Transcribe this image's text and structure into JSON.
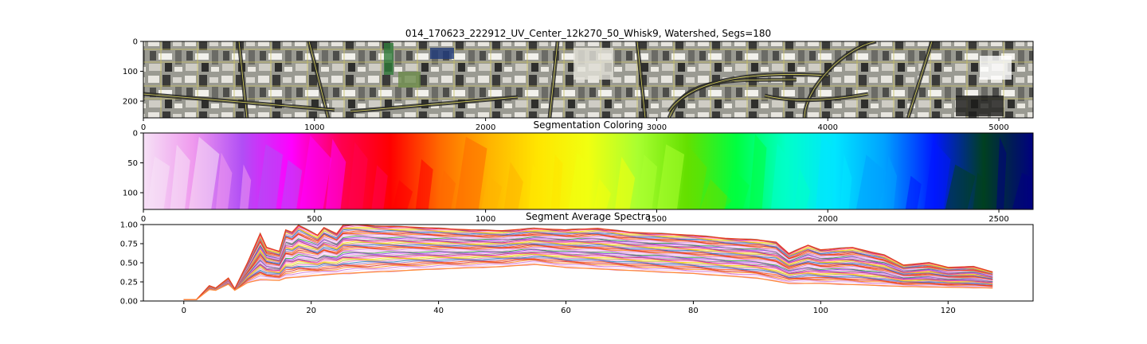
{
  "chart_data": [
    {
      "type": "image",
      "title": "014_170623_222912_UV_Center_12k270_50_Whisk9, Watershed, Segs=180",
      "x_ticks": [
        0,
        1000,
        2000,
        3000,
        4000,
        5000
      ],
      "y_ticks": [
        0,
        100,
        200
      ],
      "xlim": [
        0,
        5200
      ],
      "ylim": [
        0,
        256
      ],
      "content": "aerial urban imagery with yellow segment boundaries"
    },
    {
      "type": "heatmap",
      "title": "Segmentation Coloring",
      "x_ticks": [
        0,
        500,
        1000,
        1500,
        2000,
        2500
      ],
      "y_ticks": [
        0,
        50,
        100
      ],
      "xlim": [
        0,
        2600
      ],
      "ylim": [
        0,
        128
      ],
      "colormap_stops": [
        "#f6e1f6",
        "#ef9aee",
        "#b14ef5",
        "#ff00ff",
        "#ff0050",
        "#ff0000",
        "#ff6a00",
        "#ffb400",
        "#ffe600",
        "#f1ff10",
        "#a9ff30",
        "#64e000",
        "#00ff40",
        "#00ffc8",
        "#00e5ff",
        "#00a0ff",
        "#0018ff",
        "#004020",
        "#000080"
      ]
    },
    {
      "type": "line",
      "title": "Segment Average Spectra",
      "x_ticks": [
        0,
        20,
        40,
        60,
        80,
        100,
        120
      ],
      "y_ticks": [
        "0.00",
        "0.25",
        "0.50",
        "0.75",
        "1.00"
      ],
      "xlim": [
        -6.35,
        133.35
      ],
      "ylim": [
        0,
        1
      ],
      "x_range": [
        0,
        127
      ],
      "envelope_upper": [
        [
          0,
          0.02
        ],
        [
          2,
          0.02
        ],
        [
          4,
          0.2
        ],
        [
          5,
          0.17
        ],
        [
          7,
          0.3
        ],
        [
          8,
          0.16
        ],
        [
          10,
          0.5
        ],
        [
          12,
          0.88
        ],
        [
          13,
          0.7
        ],
        [
          15,
          0.65
        ],
        [
          16,
          0.93
        ],
        [
          17,
          0.9
        ],
        [
          18,
          0.99
        ],
        [
          21,
          0.86
        ],
        [
          22,
          0.96
        ],
        [
          24,
          0.88
        ],
        [
          25,
          0.99
        ],
        [
          27,
          1.0
        ],
        [
          30,
          0.98
        ],
        [
          35,
          0.97
        ],
        [
          40,
          0.95
        ],
        [
          45,
          0.93
        ],
        [
          50,
          0.92
        ],
        [
          55,
          0.95
        ],
        [
          60,
          0.93
        ],
        [
          65,
          0.95
        ],
        [
          70,
          0.9
        ],
        [
          75,
          0.88
        ],
        [
          80,
          0.86
        ],
        [
          85,
          0.82
        ],
        [
          90,
          0.8
        ],
        [
          93,
          0.77
        ],
        [
          95,
          0.62
        ],
        [
          98,
          0.73
        ],
        [
          100,
          0.67
        ],
        [
          105,
          0.7
        ],
        [
          110,
          0.6
        ],
        [
          113,
          0.47
        ],
        [
          117,
          0.5
        ],
        [
          120,
          0.44
        ],
        [
          124,
          0.45
        ],
        [
          127,
          0.38
        ]
      ],
      "envelope_lower": [
        [
          0,
          0.02
        ],
        [
          2,
          0.02
        ],
        [
          4,
          0.15
        ],
        [
          5,
          0.14
        ],
        [
          7,
          0.22
        ],
        [
          8,
          0.14
        ],
        [
          10,
          0.24
        ],
        [
          12,
          0.28
        ],
        [
          15,
          0.27
        ],
        [
          16,
          0.3
        ],
        [
          20,
          0.33
        ],
        [
          25,
          0.36
        ],
        [
          30,
          0.38
        ],
        [
          40,
          0.42
        ],
        [
          50,
          0.45
        ],
        [
          55,
          0.48
        ],
        [
          60,
          0.44
        ],
        [
          70,
          0.4
        ],
        [
          80,
          0.36
        ],
        [
          85,
          0.33
        ],
        [
          90,
          0.3
        ],
        [
          95,
          0.23
        ],
        [
          100,
          0.23
        ],
        [
          110,
          0.2
        ],
        [
          113,
          0.19
        ],
        [
          120,
          0.18
        ],
        [
          127,
          0.17
        ]
      ],
      "series_count": 180
    }
  ]
}
